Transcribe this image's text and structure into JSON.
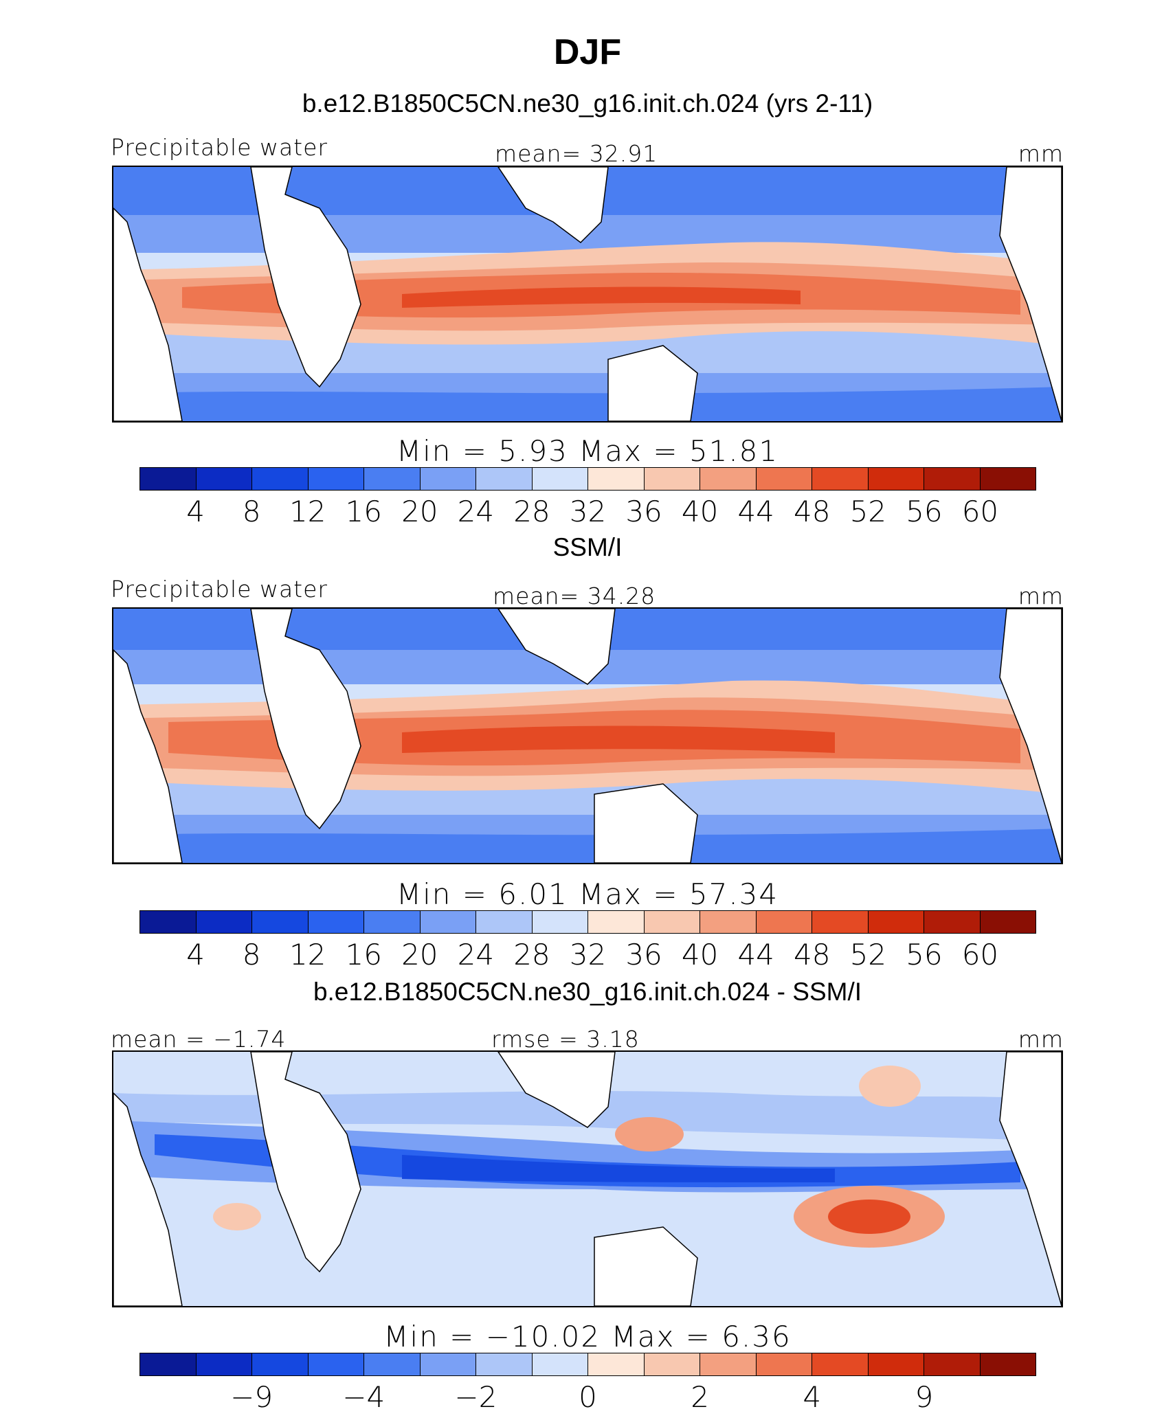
{
  "figure_title": "DJF",
  "colors": {
    "default": [
      "#0a1a96",
      "#0c2cc4",
      "#1548e0",
      "#2a62ef",
      "#4a7ef2",
      "#7aa0f5",
      "#adc6f8",
      "#d4e3fb",
      "#fde7d8",
      "#f8c8b0",
      "#f3a080",
      "#ee7650",
      "#e44a24",
      "#d02c0c",
      "#b01c08",
      "#8a0f04"
    ],
    "bias": [
      "#0a1a96",
      "#0c2cc4",
      "#1548e0",
      "#2a62ef",
      "#4a7ef2",
      "#7aa0f5",
      "#adc6f8",
      "#d4e3fb",
      "#fde7d8",
      "#f8c8b0",
      "#f3a080",
      "#ee7650",
      "#e44a24",
      "#d02c0c",
      "#b01c08",
      "#8a0f04"
    ]
  },
  "panels": [
    {
      "title": "b.e12.B1850C5CN.ne30_g16.init.ch.024 (yrs 2-11)",
      "left_label": "Precipitable water",
      "center_label": "mean=   32.91",
      "units": "mm",
      "minmax": "Min  =    5.93  Max  =   51.81",
      "ticks": [
        "4",
        "8",
        "12",
        "16",
        "20",
        "24",
        "28",
        "32",
        "36",
        "40",
        "44",
        "48",
        "52",
        "56",
        "60"
      ]
    },
    {
      "title": "SSM/I",
      "left_label": "Precipitable water",
      "center_label": "mean=   34.28",
      "units": "mm",
      "minmax": "Min  =    6.01  Max  =   57.34",
      "ticks": [
        "4",
        "8",
        "12",
        "16",
        "20",
        "24",
        "28",
        "32",
        "36",
        "40",
        "44",
        "48",
        "52",
        "56",
        "60"
      ]
    },
    {
      "title": "b.e12.B1850C5CN.ne30_g16.init.ch.024 - SSM/I",
      "left_label": "mean  =   −1.74",
      "center_label": "rmse  =    3.18",
      "units": "mm",
      "minmax": "Min  =  −10.02  Max  =    6.36",
      "ticks": [
        "−9",
        "",
        "−4",
        "",
        "−2",
        "",
        "0",
        "",
        "2",
        "",
        "4",
        "",
        "9"
      ]
    }
  ]
}
